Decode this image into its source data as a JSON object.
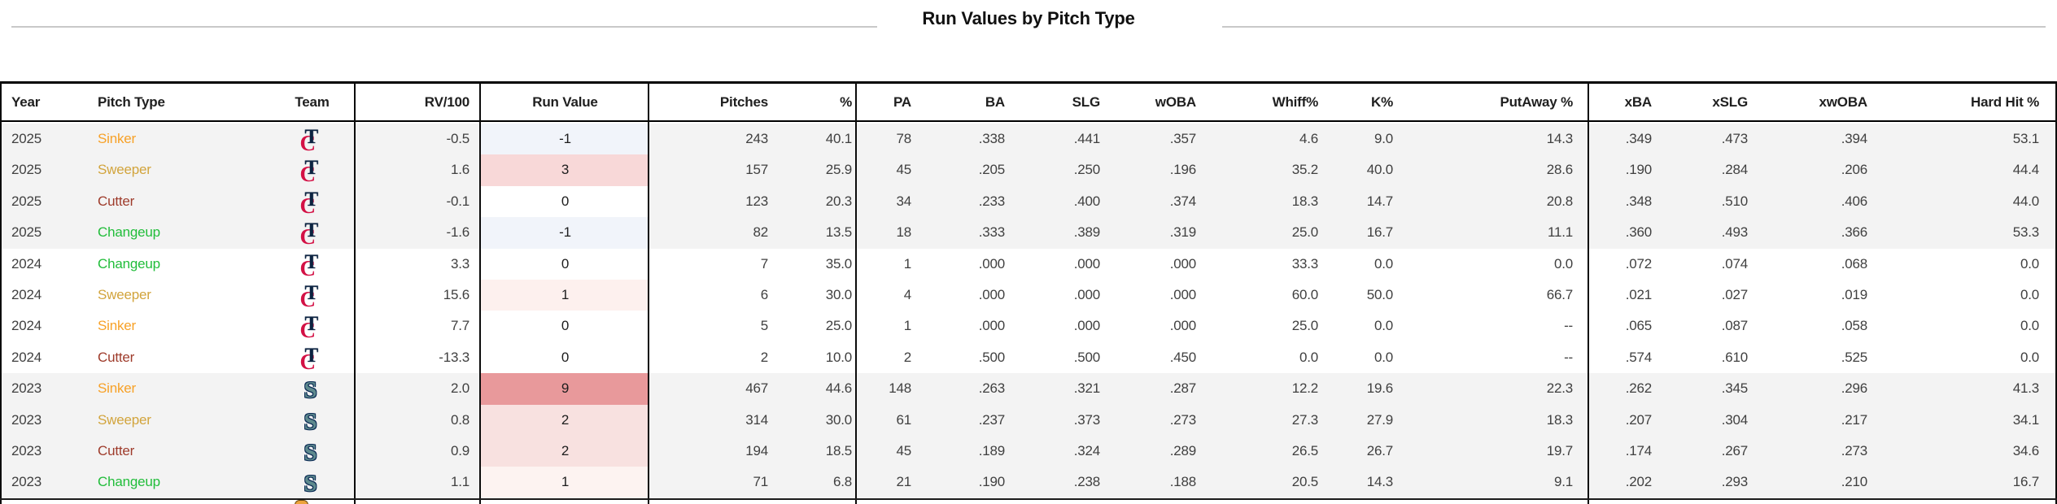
{
  "title": "Run Values by Pitch Type",
  "table": {
    "columns": [
      {
        "key": "year",
        "label": "Year"
      },
      {
        "key": "pitch_type",
        "label": "Pitch Type"
      },
      {
        "key": "team",
        "label": "Team"
      },
      {
        "key": "rv100",
        "label": "RV/100"
      },
      {
        "key": "run_value",
        "label": "Run Value"
      },
      {
        "key": "pitches",
        "label": "Pitches"
      },
      {
        "key": "pct",
        "label": "%"
      },
      {
        "key": "pa",
        "label": "PA"
      },
      {
        "key": "ba",
        "label": "BA"
      },
      {
        "key": "slg",
        "label": "SLG"
      },
      {
        "key": "woba",
        "label": "wOBA"
      },
      {
        "key": "whiff",
        "label": "Whiff%"
      },
      {
        "key": "k",
        "label": "K%"
      },
      {
        "key": "putaway",
        "label": "PutAway %"
      },
      {
        "key": "xba",
        "label": "xBA"
      },
      {
        "key": "xslg",
        "label": "xSLG"
      },
      {
        "key": "xwoba",
        "label": "xwOBA"
      },
      {
        "key": "hardhit",
        "label": "Hard Hit %"
      }
    ],
    "rows": [
      {
        "year": "2025",
        "pitch_type": "Sinker",
        "team": "twins",
        "rv100": "-0.5",
        "run_value": "-1",
        "run_value_bg": "#f1f4fa",
        "pitches": "243",
        "pct": "40.1",
        "pa": "78",
        "ba": ".338",
        "slg": ".441",
        "woba": ".357",
        "whiff": "4.6",
        "k": "9.0",
        "putaway": "14.3",
        "xba": ".349",
        "xslg": ".473",
        "xwoba": ".394",
        "hardhit": "53.1",
        "group_shaded": true
      },
      {
        "year": "2025",
        "pitch_type": "Sweeper",
        "team": "twins",
        "rv100": "1.6",
        "run_value": "3",
        "run_value_bg": "#f8d8d8",
        "pitches": "157",
        "pct": "25.9",
        "pa": "45",
        "ba": ".205",
        "slg": ".250",
        "woba": ".196",
        "whiff": "35.2",
        "k": "40.0",
        "putaway": "28.6",
        "xba": ".190",
        "xslg": ".284",
        "xwoba": ".206",
        "hardhit": "44.4",
        "group_shaded": true
      },
      {
        "year": "2025",
        "pitch_type": "Cutter",
        "team": "twins",
        "rv100": "-0.1",
        "run_value": "0",
        "run_value_bg": "#ffffff",
        "pitches": "123",
        "pct": "20.3",
        "pa": "34",
        "ba": ".233",
        "slg": ".400",
        "woba": ".374",
        "whiff": "18.3",
        "k": "14.7",
        "putaway": "20.8",
        "xba": ".348",
        "xslg": ".510",
        "xwoba": ".406",
        "hardhit": "44.0",
        "group_shaded": true
      },
      {
        "year": "2025",
        "pitch_type": "Changeup",
        "team": "twins",
        "rv100": "-1.6",
        "run_value": "-1",
        "run_value_bg": "#f1f4fa",
        "pitches": "82",
        "pct": "13.5",
        "pa": "18",
        "ba": ".333",
        "slg": ".389",
        "woba": ".319",
        "whiff": "25.0",
        "k": "16.7",
        "putaway": "11.1",
        "xba": ".360",
        "xslg": ".493",
        "xwoba": ".366",
        "hardhit": "53.3",
        "group_shaded": true
      },
      {
        "year": "2024",
        "pitch_type": "Changeup",
        "team": "twins",
        "rv100": "3.3",
        "run_value": "0",
        "run_value_bg": "#ffffff",
        "pitches": "7",
        "pct": "35.0",
        "pa": "1",
        "ba": ".000",
        "slg": ".000",
        "woba": ".000",
        "whiff": "33.3",
        "k": "0.0",
        "putaway": "0.0",
        "xba": ".072",
        "xslg": ".074",
        "xwoba": ".068",
        "hardhit": "0.0",
        "group_shaded": false
      },
      {
        "year": "2024",
        "pitch_type": "Sweeper",
        "team": "twins",
        "rv100": "15.6",
        "run_value": "1",
        "run_value_bg": "#fdf0ee",
        "pitches": "6",
        "pct": "30.0",
        "pa": "4",
        "ba": ".000",
        "slg": ".000",
        "woba": ".000",
        "whiff": "60.0",
        "k": "50.0",
        "putaway": "66.7",
        "xba": ".021",
        "xslg": ".027",
        "xwoba": ".019",
        "hardhit": "0.0",
        "group_shaded": false
      },
      {
        "year": "2024",
        "pitch_type": "Sinker",
        "team": "twins",
        "rv100": "7.7",
        "run_value": "0",
        "run_value_bg": "#ffffff",
        "pitches": "5",
        "pct": "25.0",
        "pa": "1",
        "ba": ".000",
        "slg": ".000",
        "woba": ".000",
        "whiff": "25.0",
        "k": "0.0",
        "putaway": "--",
        "xba": ".065",
        "xslg": ".087",
        "xwoba": ".058",
        "hardhit": "0.0",
        "group_shaded": false
      },
      {
        "year": "2024",
        "pitch_type": "Cutter",
        "team": "twins",
        "rv100": "-13.3",
        "run_value": "0",
        "run_value_bg": "#ffffff",
        "pitches": "2",
        "pct": "10.0",
        "pa": "2",
        "ba": ".500",
        "slg": ".500",
        "woba": ".450",
        "whiff": "0.0",
        "k": "0.0",
        "putaway": "--",
        "xba": ".574",
        "xslg": ".610",
        "xwoba": ".525",
        "hardhit": "0.0",
        "group_shaded": false
      },
      {
        "year": "2023",
        "pitch_type": "Sinker",
        "team": "mariners",
        "rv100": "2.0",
        "run_value": "9",
        "run_value_bg": "#e8999b",
        "pitches": "467",
        "pct": "44.6",
        "pa": "148",
        "ba": ".263",
        "slg": ".321",
        "woba": ".287",
        "whiff": "12.2",
        "k": "19.6",
        "putaway": "22.3",
        "xba": ".262",
        "xslg": ".345",
        "xwoba": ".296",
        "hardhit": "41.3",
        "group_shaded": true
      },
      {
        "year": "2023",
        "pitch_type": "Sweeper",
        "team": "mariners",
        "rv100": "0.8",
        "run_value": "2",
        "run_value_bg": "#f8e1e0",
        "pitches": "314",
        "pct": "30.0",
        "pa": "61",
        "ba": ".237",
        "slg": ".373",
        "woba": ".273",
        "whiff": "27.3",
        "k": "27.9",
        "putaway": "18.3",
        "xba": ".207",
        "xslg": ".304",
        "xwoba": ".217",
        "hardhit": "34.1",
        "group_shaded": true
      },
      {
        "year": "2023",
        "pitch_type": "Cutter",
        "team": "mariners",
        "rv100": "0.9",
        "run_value": "2",
        "run_value_bg": "#f8e1e0",
        "pitches": "194",
        "pct": "18.5",
        "pa": "45",
        "ba": ".189",
        "slg": ".324",
        "woba": ".289",
        "whiff": "26.5",
        "k": "26.7",
        "putaway": "19.7",
        "xba": ".174",
        "xslg": ".267",
        "xwoba": ".273",
        "hardhit": "34.6",
        "group_shaded": true
      },
      {
        "year": "2023",
        "pitch_type": "Changeup",
        "team": "mariners",
        "rv100": "1.1",
        "run_value": "1",
        "run_value_bg": "#fdf3f1",
        "pitches": "71",
        "pct": "6.8",
        "pa": "21",
        "ba": ".190",
        "slg": ".238",
        "woba": ".188",
        "whiff": "20.5",
        "k": "14.3",
        "putaway": "9.1",
        "xba": ".202",
        "xslg": ".293",
        "xwoba": ".210",
        "hardhit": "16.7",
        "group_shaded": true
      }
    ]
  },
  "colors": {
    "pitch_types": {
      "Sinker": "#F7A127",
      "Sweeper": "#D2A43C",
      "Cutter": "#9E3B2B",
      "Changeup": "#21BD3A"
    },
    "teams": {
      "twins": {
        "navy": "#0C2341",
        "red": "#D31145"
      },
      "mariners": {
        "navy": "#0C2C56",
        "teal": "#5E8A8E"
      }
    },
    "run_value_scale": {
      "negative": "#f1f4fa",
      "zero": "#ffffff",
      "high_positive": "#e8999b"
    },
    "group_stripe": "#f3f3f3"
  }
}
